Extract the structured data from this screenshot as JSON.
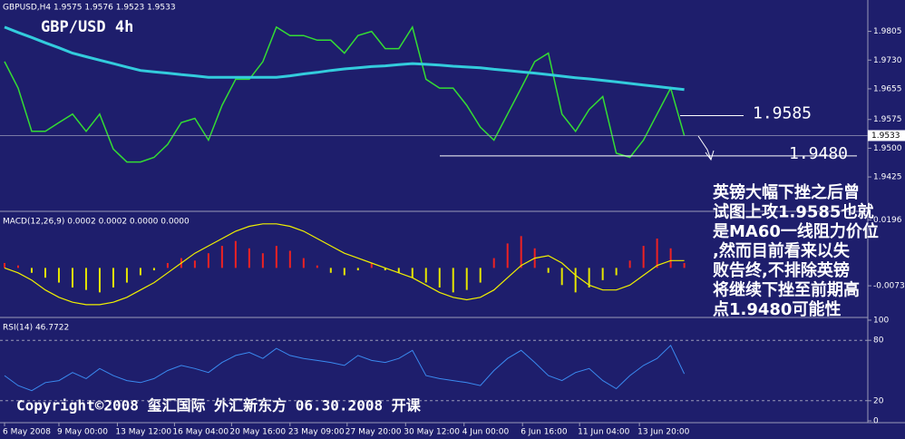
{
  "chart_data": [
    {
      "type": "line",
      "title": "GBPUSD,H4  1.9575 1.9576 1.9523 1.9533",
      "watermark": "GBP/USD 4h",
      "xlim": [
        0,
        63.5
      ],
      "ylim": [
        1.934,
        1.9875
      ],
      "yticks": [
        1.9805,
        {
          "value": 1.973,
          "label": "1.9730"
        },
        1.9655,
        1.9575,
        {
          "value": 1.95,
          "label": "1.9500"
        },
        1.9425
      ],
      "last_price": 1.9533,
      "levels": [
        1.9585,
        {
          "value": 1.948,
          "label": "1.9480"
        }
      ],
      "note": [
        "英镑大幅下挫之后曾",
        "试图上攻1.9585也就",
        "是MA60一线阻力价位",
        ",然而目前看来以失",
        "败告终,不排除英镑",
        "将继续下挫至前期高",
        "点1.9480可能性"
      ],
      "copyright": "Copyright©2008 玺汇国际 外汇新东方 06.30.2008 开课",
      "series": [
        {
          "color": "#33dd33",
          "width": 1.5,
          "values": [
            1.9726,
            1.9657,
            1.9544,
            1.9544,
            1.9567,
            1.9589,
            1.9544,
            1.9589,
            1.9498,
            1.9464,
            1.9464,
            1.9476,
            1.951,
            1.9567,
            1.9578,
            1.9521,
            1.9612,
            1.968,
            1.968,
            1.9726,
            1.9816,
            1.9794,
            1.9794,
            1.9782,
            1.9782,
            1.9748,
            1.9794,
            1.9805,
            1.976,
            1.976,
            1.9816,
            1.968,
            1.9657,
            1.9657,
            1.9612,
            1.9555,
            1.9521,
            1.9589,
            1.9657,
            1.9726,
            1.9748,
            1.9589,
            1.9544,
            1.9601,
            1.9635,
            1.9487,
            1.9476,
            1.9521,
            1.9589,
            1.9657,
            1.9533
          ]
        },
        {
          "color": "#33ccdd",
          "width": 3,
          "values": [
            1.9816,
            1.9802,
            1.9789,
            1.9775,
            1.9762,
            1.9748,
            1.9739,
            1.973,
            1.9721,
            1.9712,
            1.9703,
            1.9699,
            1.9696,
            1.9692,
            1.9689,
            1.9685,
            1.9685,
            1.9685,
            1.9685,
            1.9685,
            1.9685,
            1.9689,
            1.9694,
            1.9698,
            1.9703,
            1.9707,
            1.971,
            1.9713,
            1.9715,
            1.9718,
            1.9721,
            1.9719,
            1.9717,
            1.9714,
            1.9712,
            1.971,
            1.9706,
            1.9703,
            1.9699,
            1.9696,
            1.9692,
            1.9688,
            1.9684,
            1.9681,
            1.9677,
            1.9673,
            1.9669,
            1.9665,
            1.9661,
            1.9657,
            1.9653
          ]
        }
      ]
    },
    {
      "type": "bar",
      "title": "MACD(12,26,9) 0.0002 0.0002 0.0000 0.0000",
      "xlim": [
        0,
        63.5
      ],
      "ylim": [
        -0.0195,
        0.022
      ],
      "yticks": [
        0.0196,
        -0.0073
      ],
      "series": [
        {
          "type": "bar",
          "color": "#ee2222",
          "negative_color": "#e6e600",
          "values": [
            0.002,
            0.001,
            -0.002,
            -0.004,
            -0.006,
            -0.008,
            -0.009,
            -0.01,
            -0.008,
            -0.006,
            -0.003,
            -0.001,
            0.002,
            0.004,
            0.003,
            0.006,
            0.009,
            0.011,
            0.008,
            0.006,
            0.009,
            0.007,
            0.004,
            0.001,
            -0.002,
            -0.003,
            -0.001,
            0.002,
            -0.001,
            -0.002,
            -0.004,
            -0.006,
            -0.008,
            -0.01,
            -0.009,
            -0.006,
            0.004,
            0.01,
            0.013,
            0.008,
            -0.002,
            -0.007,
            -0.01,
            -0.008,
            -0.005,
            -0.003,
            0.003,
            0.009,
            0.012,
            0.008,
            0.002
          ]
        },
        {
          "type": "line",
          "color": "#f0f000",
          "width": 1.2,
          "values": [
            0,
            -0.002,
            -0.005,
            -0.009,
            -0.012,
            -0.014,
            -0.015,
            -0.015,
            -0.014,
            -0.012,
            -0.009,
            -0.006,
            -0.002,
            0.002,
            0.006,
            0.009,
            0.012,
            0.015,
            0.017,
            0.018,
            0.018,
            0.017,
            0.015,
            0.012,
            0.009,
            0.006,
            0.004,
            0.002,
            0,
            -0.002,
            -0.004,
            -0.007,
            -0.01,
            -0.012,
            -0.013,
            -0.012,
            -0.009,
            -0.004,
            0.001,
            0.004,
            0.005,
            0.002,
            -0.003,
            -0.007,
            -0.009,
            -0.009,
            -0.007,
            -0.003,
            0.001,
            0.003,
            0.003
          ]
        }
      ]
    },
    {
      "type": "line",
      "title": "RSI(14) 46.7722",
      "xlim": [
        0,
        63.5
      ],
      "ylim": [
        0,
        100
      ],
      "yticks": [
        100,
        80,
        20,
        0
      ],
      "xticks": [
        {
          "value": 0,
          "label": "6 May 2008"
        },
        {
          "value": 4,
          "label": "9 May 00:00"
        },
        {
          "value": 8.3,
          "label": "13 May 12:00"
        },
        {
          "value": 12.5,
          "label": "16 May 04:00"
        },
        {
          "value": 16.7,
          "label": "20 May 16:00"
        },
        {
          "value": 21,
          "label": "23 May 09:00"
        },
        {
          "value": 25.2,
          "label": "27 May 20:00"
        },
        {
          "value": 29.5,
          "label": "30 May 12:00"
        },
        {
          "value": 33.8,
          "label": "4 Jun 00:00"
        },
        {
          "value": 38.1,
          "label": "6 Jun 16:00"
        },
        {
          "value": 42.3,
          "label": "11 Jun 04:00"
        },
        {
          "value": 46.7,
          "label": "13 Jun 20:00"
        }
      ],
      "series": [
        {
          "color": "#3a8af0",
          "width": 1,
          "values": [
            45,
            35,
            30,
            38,
            40,
            48,
            42,
            52,
            45,
            40,
            38,
            42,
            50,
            55,
            52,
            48,
            58,
            65,
            68,
            62,
            72,
            65,
            62,
            60,
            58,
            55,
            65,
            60,
            58,
            62,
            70,
            45,
            42,
            40,
            38,
            35,
            50,
            62,
            70,
            58,
            45,
            40,
            48,
            52,
            40,
            32,
            45,
            55,
            62,
            75,
            46.7722
          ]
        }
      ]
    }
  ]
}
